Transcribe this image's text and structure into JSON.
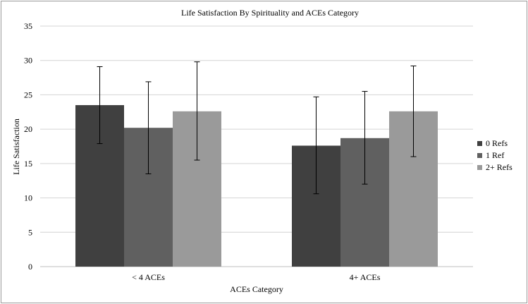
{
  "chart_data": {
    "type": "bar",
    "title": "Life Satisfaction By Spirituality and ACEs Category",
    "xlabel": "ACEs Category",
    "ylabel": "Life Satisfaction",
    "categories": [
      "< 4 ACEs",
      "4+ ACEs"
    ],
    "ylim": [
      0,
      35
    ],
    "yticks": [
      "0",
      "5",
      "10",
      "15",
      "20",
      "25",
      "30",
      "35"
    ],
    "grid": true,
    "legend_position": "right",
    "series": [
      {
        "name": "0 Refs",
        "color": "#404040",
        "values": [
          23.5,
          17.6
        ],
        "error_low": [
          17.9,
          10.6
        ],
        "error_high": [
          29.1,
          24.7
        ]
      },
      {
        "name": "1 Ref",
        "color": "#606060",
        "values": [
          20.2,
          18.7
        ],
        "error_low": [
          13.5,
          12.0
        ],
        "error_high": [
          26.9,
          25.5
        ]
      },
      {
        "name": "2+ Refs",
        "color": "#9a9a9a",
        "values": [
          22.6,
          22.6
        ],
        "error_low": [
          15.5,
          16.0
        ],
        "error_high": [
          29.8,
          29.2
        ]
      }
    ]
  }
}
